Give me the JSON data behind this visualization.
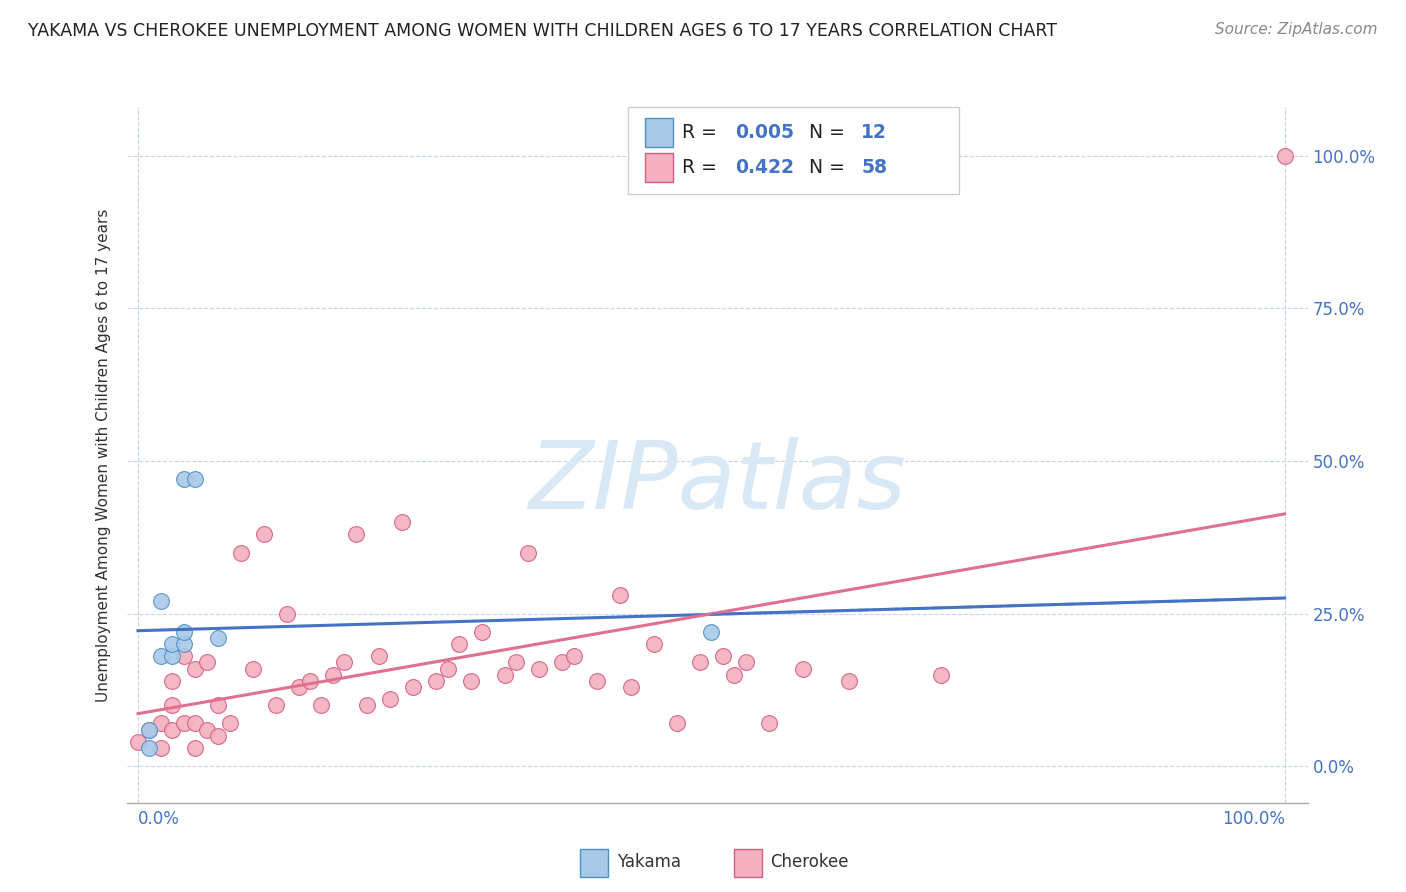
{
  "title": "YAKAMA VS CHEROKEE UNEMPLOYMENT AMONG WOMEN WITH CHILDREN AGES 6 TO 17 YEARS CORRELATION CHART",
  "source": "Source: ZipAtlas.com",
  "ylabel": "Unemployment Among Women with Children Ages 6 to 17 years",
  "ytick_labels": [
    "0.0%",
    "25.0%",
    "50.0%",
    "75.0%",
    "100.0%"
  ],
  "ytick_vals": [
    0.0,
    0.25,
    0.5,
    0.75,
    1.0
  ],
  "xtick_labels": [
    "0.0%",
    "100.0%"
  ],
  "xtick_vals": [
    0.0,
    1.0
  ],
  "r_yakama": "0.005",
  "n_yakama": "12",
  "r_cherokee": "0.422",
  "n_cherokee": "58",
  "color_yakama_fill": "#a8c8e8",
  "color_yakama_edge": "#5090c8",
  "color_cherokee_fill": "#f4b0c0",
  "color_cherokee_edge": "#d06080",
  "color_trend_yakama": "#4472c4",
  "color_trend_cherokee": "#e07090",
  "color_axis_label": "#4472c4",
  "color_title": "#222222",
  "color_source": "#888888",
  "color_grid": "#c8d4e8",
  "background": "#ffffff",
  "watermark_text": "ZIPatlas",
  "watermark_color": "#d8e8f4",
  "legend_label_yakama": "Yakama",
  "legend_label_cherokee": "Cherokee",
  "xlim": [
    -0.01,
    1.02
  ],
  "ylim": [
    -0.06,
    1.08
  ],
  "yakama_x": [
    0.01,
    0.01,
    0.02,
    0.02,
    0.03,
    0.03,
    0.04,
    0.04,
    0.04,
    0.05,
    0.07,
    0.5
  ],
  "yakama_y": [
    0.03,
    0.06,
    0.18,
    0.27,
    0.18,
    0.2,
    0.47,
    0.2,
    0.22,
    0.47,
    0.21,
    0.22
  ],
  "cherokee_x": [
    0.0,
    0.01,
    0.02,
    0.02,
    0.03,
    0.03,
    0.03,
    0.04,
    0.04,
    0.05,
    0.05,
    0.05,
    0.06,
    0.06,
    0.07,
    0.07,
    0.08,
    0.09,
    0.1,
    0.11,
    0.12,
    0.13,
    0.14,
    0.15,
    0.16,
    0.17,
    0.18,
    0.19,
    0.2,
    0.21,
    0.22,
    0.23,
    0.24,
    0.26,
    0.27,
    0.28,
    0.29,
    0.3,
    0.32,
    0.33,
    0.34,
    0.35,
    0.37,
    0.38,
    0.4,
    0.42,
    0.43,
    0.45,
    0.47,
    0.49,
    0.51,
    0.52,
    0.53,
    0.55,
    0.58,
    0.62,
    0.7,
    1.0
  ],
  "cherokee_y": [
    0.04,
    0.06,
    0.03,
    0.07,
    0.06,
    0.1,
    0.14,
    0.07,
    0.18,
    0.03,
    0.07,
    0.16,
    0.06,
    0.17,
    0.05,
    0.1,
    0.07,
    0.35,
    0.16,
    0.38,
    0.1,
    0.25,
    0.13,
    0.14,
    0.1,
    0.15,
    0.17,
    0.38,
    0.1,
    0.18,
    0.11,
    0.4,
    0.13,
    0.14,
    0.16,
    0.2,
    0.14,
    0.22,
    0.15,
    0.17,
    0.35,
    0.16,
    0.17,
    0.18,
    0.14,
    0.28,
    0.13,
    0.2,
    0.07,
    0.17,
    0.18,
    0.15,
    0.17,
    0.07,
    0.16,
    0.14,
    0.15,
    1.0
  ]
}
